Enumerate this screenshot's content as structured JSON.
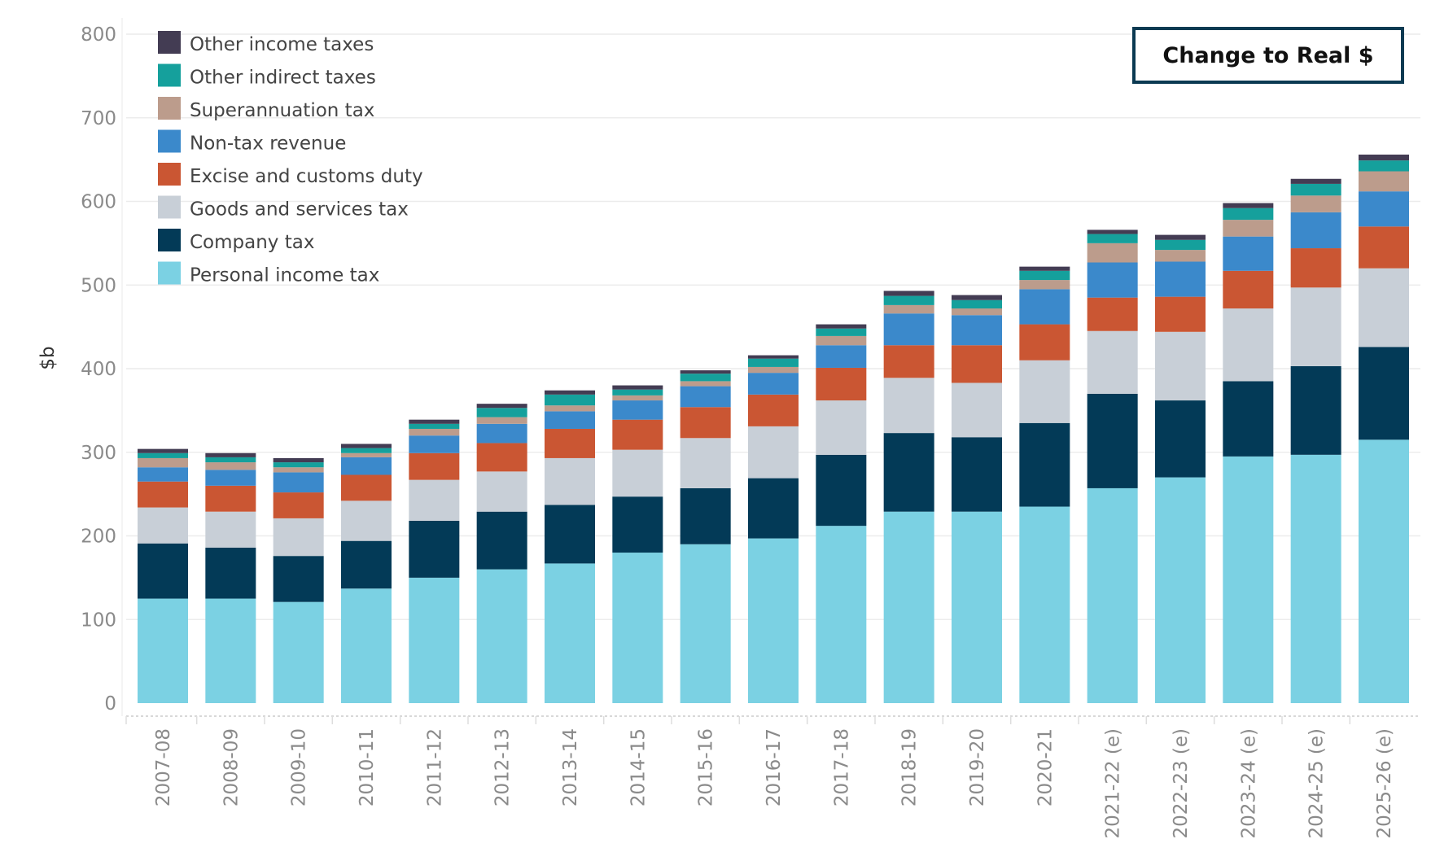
{
  "button": {
    "label": "Change to Real $"
  },
  "chart_data": {
    "type": "bar",
    "stacked": true,
    "ylabel": "$b",
    "xlabel": "",
    "ylim": [
      0,
      800
    ],
    "yticks": [
      0,
      100,
      200,
      300,
      400,
      500,
      600,
      700,
      800
    ],
    "grid": true,
    "legend_position": "top-left",
    "categories": [
      "2007-08",
      "2008-09",
      "2009-10",
      "2010-11",
      "2011-12",
      "2012-13",
      "2013-14",
      "2014-15",
      "2015-16",
      "2016-17",
      "2017-18",
      "2018-19",
      "2019-20",
      "2020-21",
      "2021-22 (e)",
      "2022-23 (e)",
      "2023-24 (e)",
      "2024-25 (e)",
      "2025-26 (e)"
    ],
    "series": [
      {
        "name": "Personal income tax",
        "color": "#7bd1e3",
        "values": [
          125,
          125,
          121,
          137,
          150,
          160,
          167,
          180,
          190,
          197,
          212,
          229,
          229,
          235,
          257,
          270,
          295,
          297,
          315
        ]
      },
      {
        "name": "Company tax",
        "color": "#033a57",
        "values": [
          66,
          61,
          55,
          57,
          68,
          69,
          70,
          67,
          67,
          72,
          85,
          94,
          89,
          100,
          113,
          92,
          90,
          106,
          111
        ]
      },
      {
        "name": "Goods and services tax",
        "color": "#c8cfd7",
        "values": [
          43,
          43,
          45,
          48,
          49,
          48,
          56,
          56,
          60,
          62,
          65,
          66,
          65,
          75,
          75,
          82,
          87,
          94,
          94
        ]
      },
      {
        "name": "Excise and customs duty",
        "color": "#ca5633",
        "values": [
          31,
          31,
          31,
          31,
          32,
          34,
          35,
          36,
          37,
          38,
          39,
          39,
          45,
          43,
          40,
          42,
          45,
          47,
          50
        ]
      },
      {
        "name": "Non-tax revenue",
        "color": "#3b89cb",
        "values": [
          17,
          19,
          24,
          21,
          21,
          23,
          21,
          23,
          25,
          26,
          27,
          38,
          36,
          42,
          42,
          42,
          41,
          43,
          42
        ]
      },
      {
        "name": "Superannuation tax",
        "color": "#bc9c8c",
        "values": [
          11,
          9,
          6,
          5,
          8,
          8,
          7,
          6,
          6,
          7,
          11,
          10,
          8,
          11,
          23,
          14,
          20,
          20,
          24
        ]
      },
      {
        "name": "Other indirect taxes",
        "color": "#15a09c",
        "values": [
          6,
          6,
          6,
          6,
          6,
          11,
          13,
          7,
          9,
          10,
          9,
          11,
          10,
          11,
          11,
          12,
          14,
          14,
          13
        ]
      },
      {
        "name": "Other income taxes",
        "color": "#433c53",
        "values": [
          5,
          5,
          5,
          5,
          5,
          5,
          5,
          5,
          4,
          4,
          5,
          6,
          6,
          5,
          5,
          6,
          6,
          6,
          7
        ]
      }
    ]
  }
}
